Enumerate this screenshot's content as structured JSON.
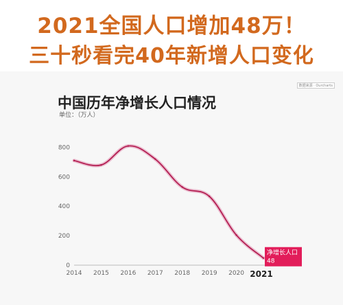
{
  "headline": {
    "line1": "2021全国人口增加48万！",
    "line2": "三十秒看完40年新增人口变化"
  },
  "source_label": "数据来源 · Ourcharts",
  "colors": {
    "headline": "#d2691e",
    "series": "#b0154a",
    "callout": "#e21d5a"
  },
  "chart_data": {
    "type": "line",
    "title": "中国历年净增长人口情况",
    "unit_label": "单位：（万人）",
    "x": [
      "2014",
      "2015",
      "2016",
      "2017",
      "2018",
      "2019",
      "2020",
      "2021"
    ],
    "series": [
      {
        "values": [
          710,
          680,
          809,
          720,
          530,
          467,
          204,
          48
        ]
      }
    ],
    "ylim": [
      0,
      900
    ],
    "yticks": [
      0,
      200,
      400,
      600,
      800
    ],
    "grid": false,
    "annotation": {
      "label": "净增长人口",
      "value": "48"
    }
  }
}
